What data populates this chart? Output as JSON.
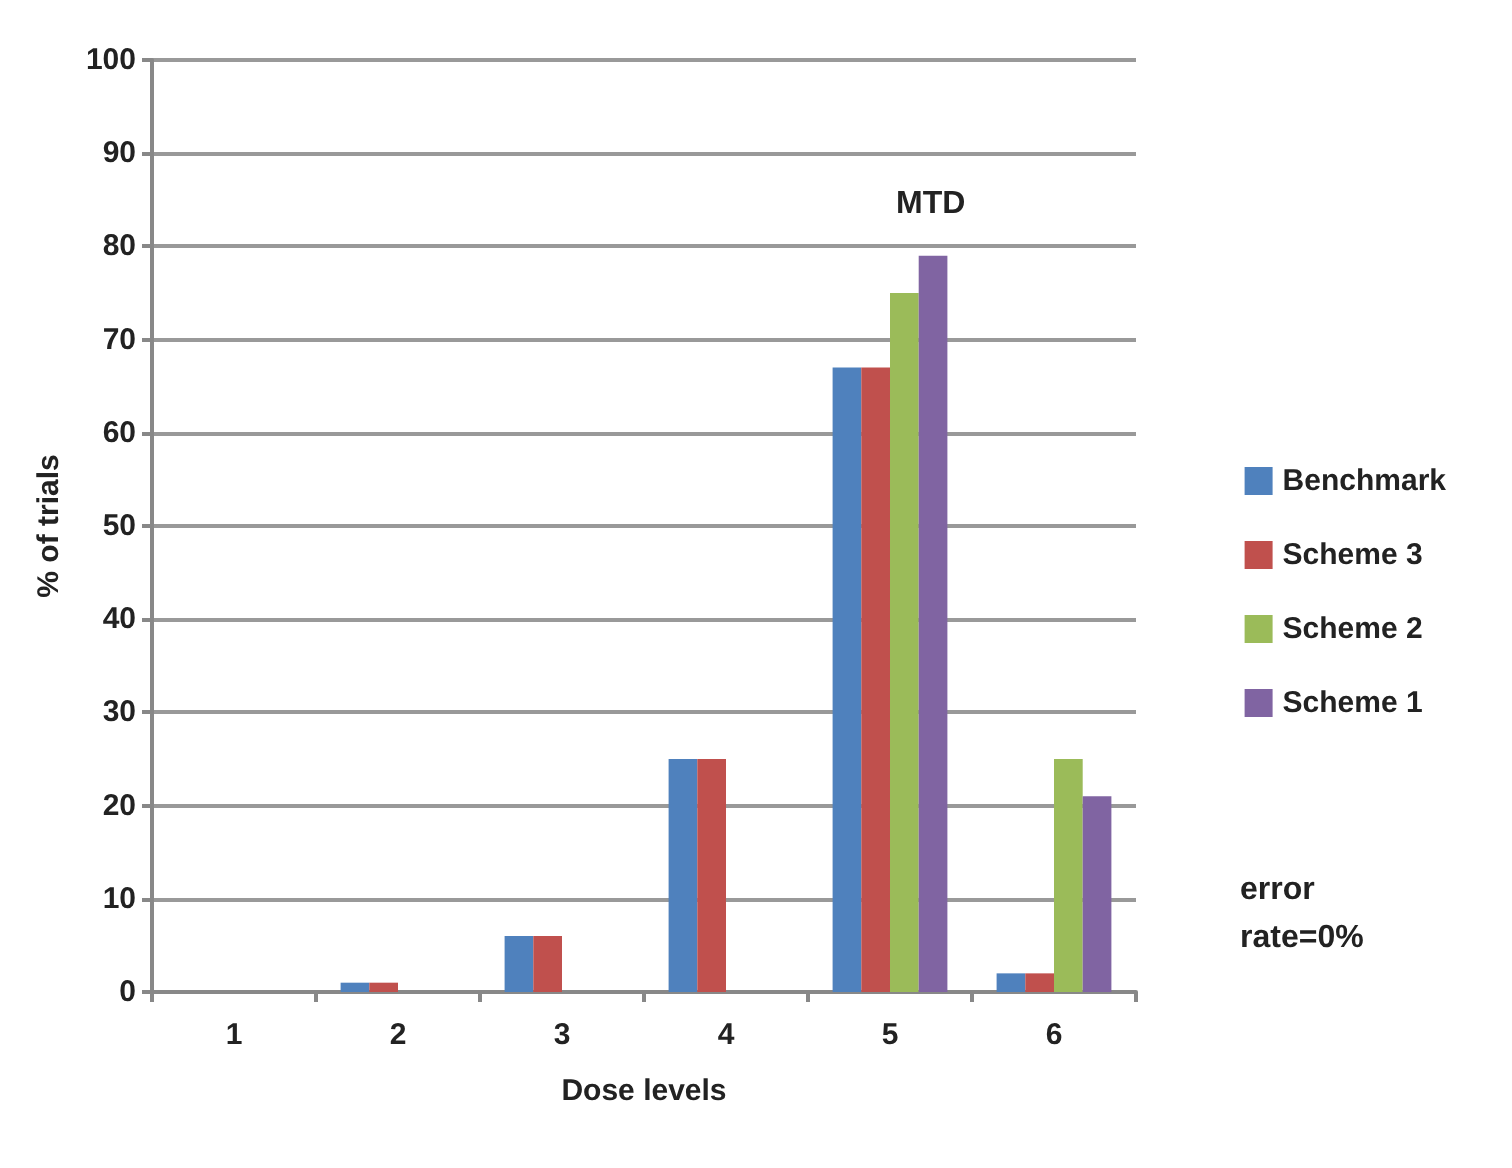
{
  "chart_data": {
    "type": "bar",
    "xlabel": "Dose levels",
    "ylabel": "% of trials",
    "categories": [
      "1",
      "2",
      "3",
      "4",
      "5",
      "6"
    ],
    "series": [
      {
        "name": "Benchmark",
        "color": "#4f81bd",
        "values": [
          0,
          1,
          6,
          25,
          67,
          2
        ]
      },
      {
        "name": "Scheme 3",
        "color": "#c0504d",
        "values": [
          0,
          1,
          6,
          25,
          67,
          2
        ]
      },
      {
        "name": "Scheme 2",
        "color": "#9bbb59",
        "values": [
          0,
          0,
          0,
          0,
          75,
          25
        ]
      },
      {
        "name": "Scheme 1",
        "color": "#8064a2",
        "values": [
          0,
          0,
          0,
          0,
          79,
          21
        ]
      }
    ],
    "ylim": [
      0,
      100
    ],
    "yticks": [
      0,
      10,
      20,
      30,
      40,
      50,
      60,
      70,
      80,
      90,
      100
    ],
    "grid": "y",
    "legend": "right",
    "annotations": [
      "MTD",
      "error\nrate=0%"
    ]
  }
}
